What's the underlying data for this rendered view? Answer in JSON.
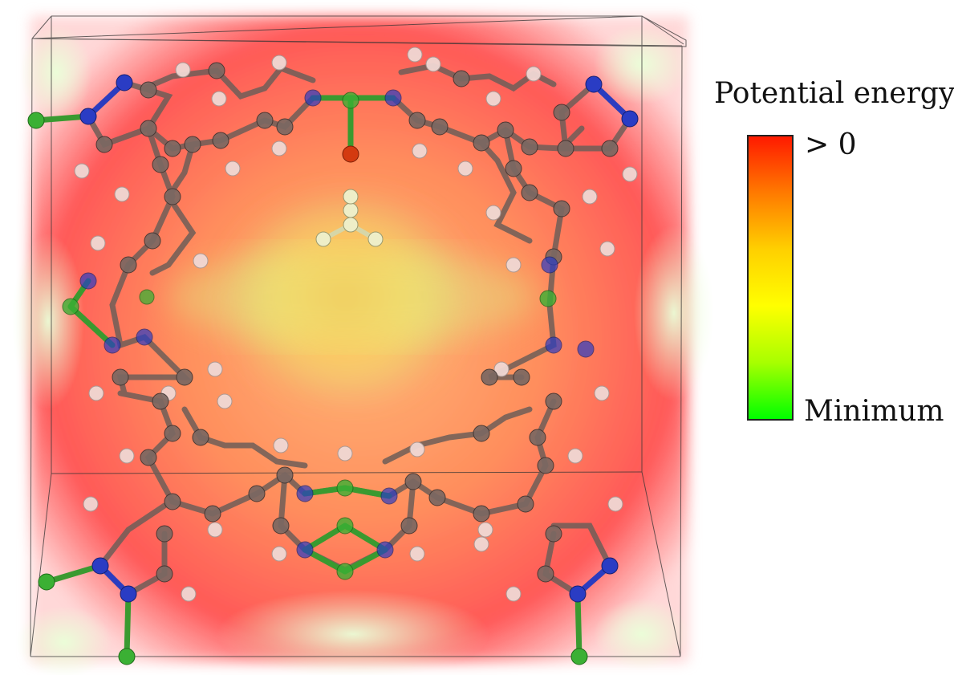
{
  "legend": {
    "title": "Potential energy",
    "max_label": "> 0",
    "min_label": "Minimum",
    "gradient": [
      "#ff1a00",
      "#ff7a00",
      "#ffd000",
      "#ffff00",
      "#a8ff00",
      "#00ff00"
    ]
  },
  "colors": {
    "carbon": "#7d6a64",
    "hydrogen": "#f2d9d4",
    "nitrogen": "#2c3fc0",
    "zinc": "#3aa834",
    "oxygen": "#d43a10",
    "linker_hydrogen": "#efefc8",
    "field_high": "#ff2a2a",
    "field_mid": "#ff9a4a",
    "field_min": "#c8ff6a"
  }
}
